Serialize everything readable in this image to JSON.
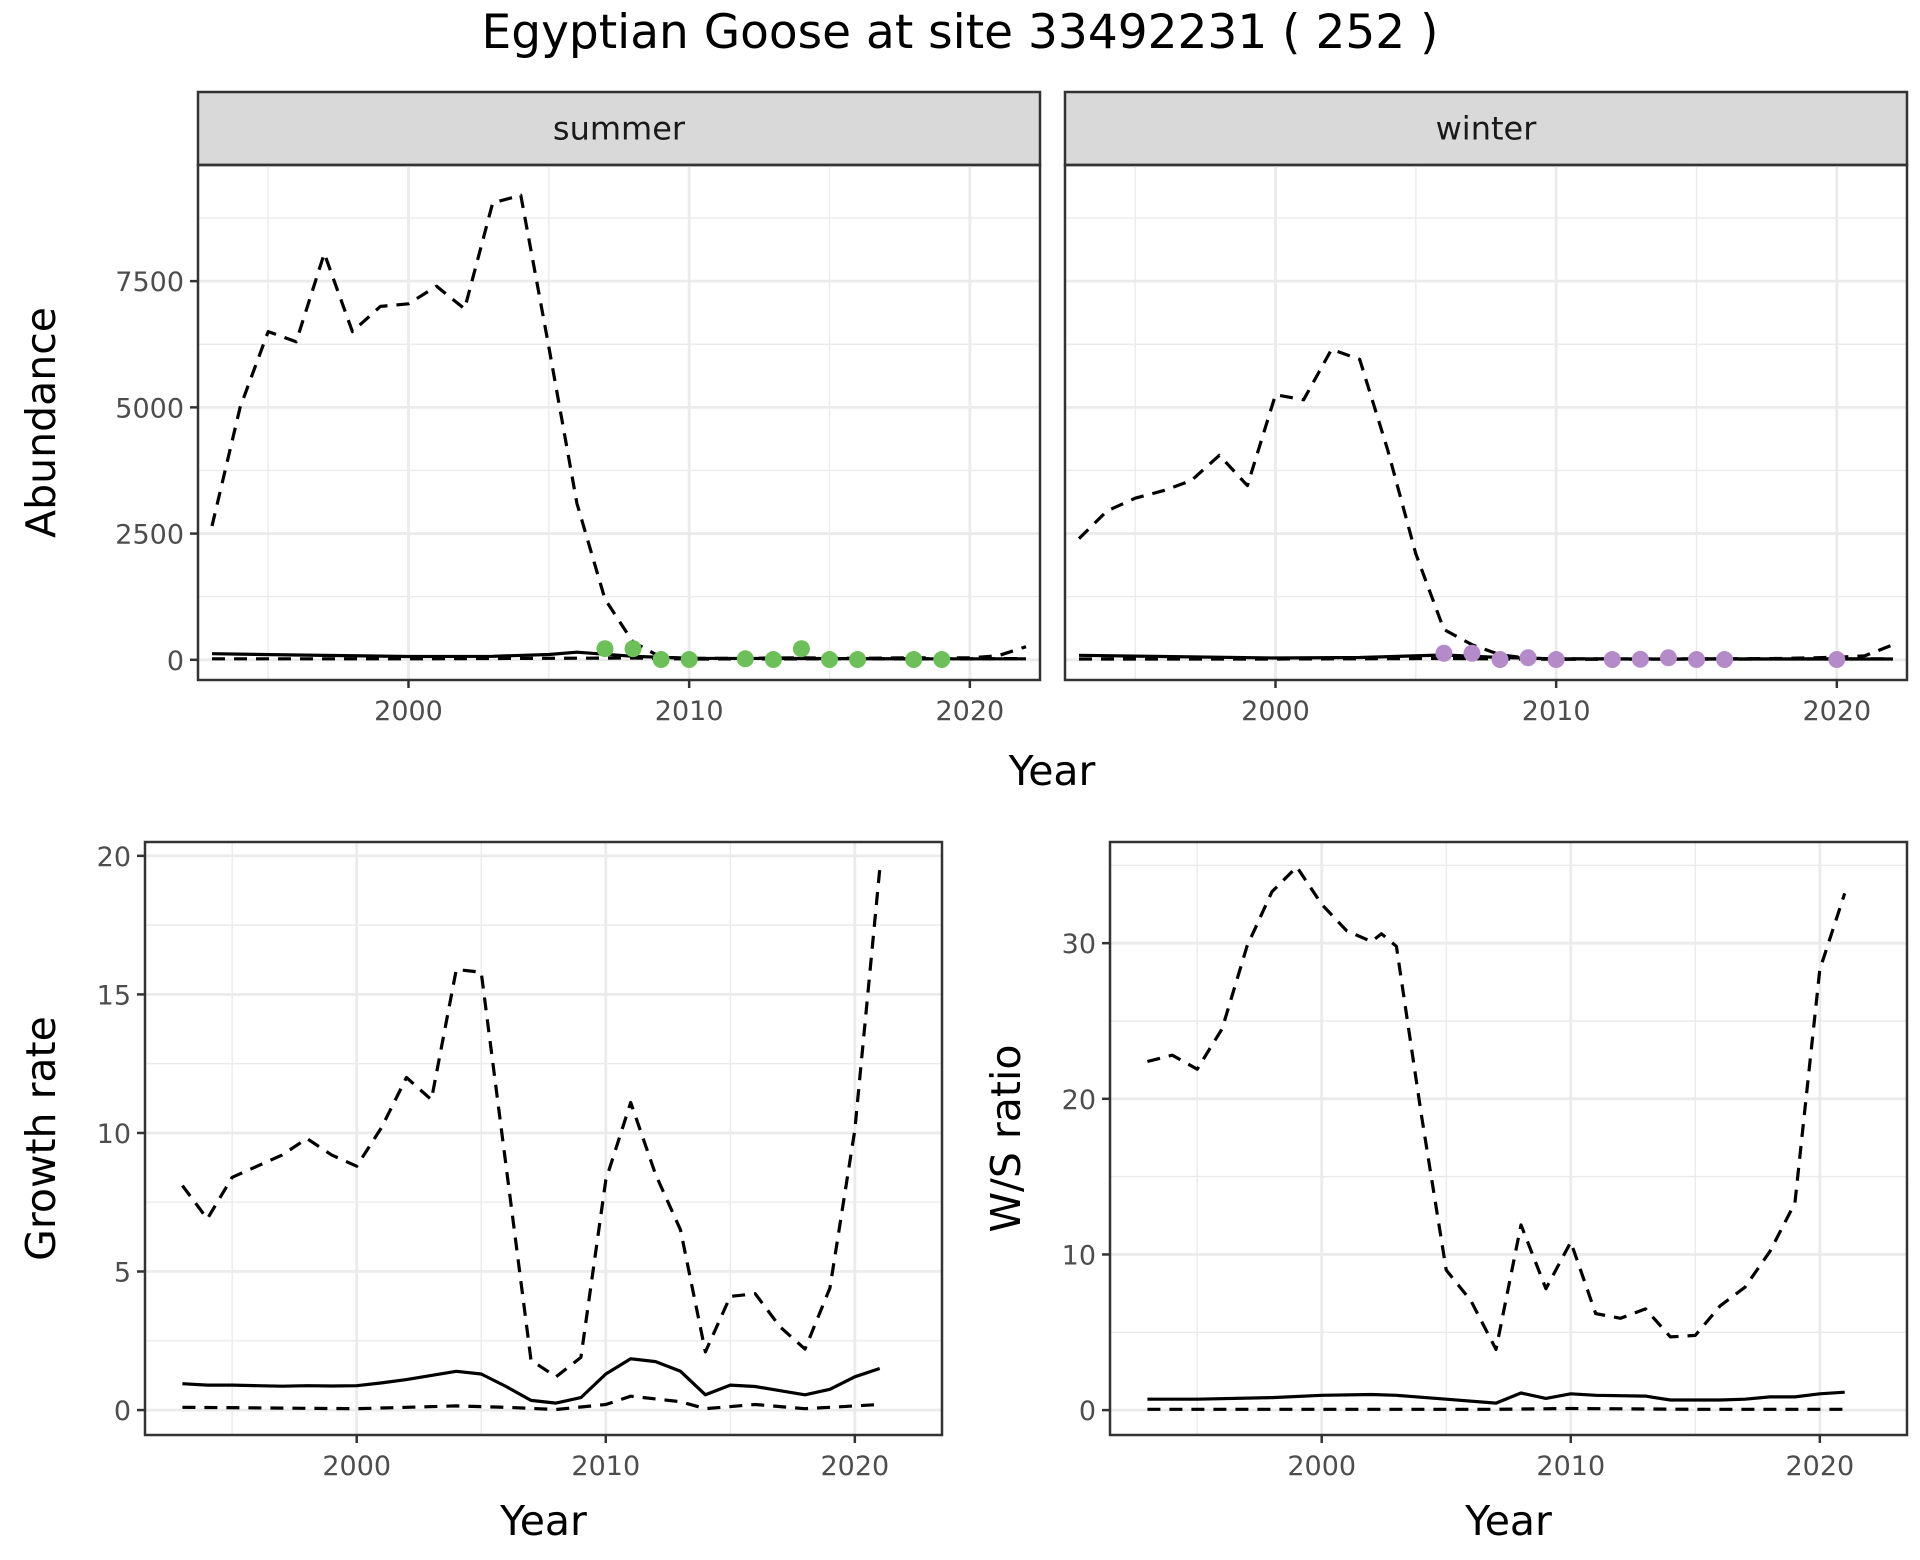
{
  "title": "Egyptian Goose at site 33492231 ( 252 )",
  "colors": {
    "summer_points": "#6dbf5a",
    "winter_points": "#b48ac8",
    "line": "#000000",
    "strip_fill": "#d9d9d9",
    "grid": "#ebebeb"
  },
  "chart_data": [
    {
      "type": "line",
      "panel": "summer",
      "strip_label": "summer",
      "xlabel": "Year",
      "ylabel": "Abundance",
      "x_ticks": [
        2000,
        2010,
        2020
      ],
      "y_ticks": [
        0,
        2500,
        5000,
        7500
      ],
      "xlim": [
        1992.5,
        2022.5
      ],
      "ylim": [
        -400,
        9800
      ],
      "grid": true,
      "series": [
        {
          "style": "solid",
          "points": [
            [
              1993,
              120
            ],
            [
              1996,
              95
            ],
            [
              2000,
              65
            ],
            [
              2003,
              70
            ],
            [
              2005,
              105
            ],
            [
              2006,
              150
            ],
            [
              2008,
              70
            ],
            [
              2010,
              30
            ],
            [
              2014,
              25
            ],
            [
              2018,
              20
            ],
            [
              2022,
              20
            ]
          ]
        },
        {
          "style": "dashed",
          "points": [
            [
              1993,
              20
            ],
            [
              2000,
              20
            ],
            [
              2005,
              30
            ],
            [
              2008,
              35
            ],
            [
              2010,
              15
            ],
            [
              2015,
              20
            ],
            [
              2020,
              20
            ],
            [
              2022,
              25
            ]
          ]
        },
        {
          "style": "dashed",
          "points": [
            [
              1993,
              2650
            ],
            [
              1994,
              5000
            ],
            [
              1995,
              6500
            ],
            [
              1996,
              6300
            ],
            [
              1997,
              8050
            ],
            [
              1998,
              6500
            ],
            [
              1999,
              7000
            ],
            [
              2000,
              7050
            ],
            [
              2001,
              7400
            ],
            [
              2002,
              6950
            ],
            [
              2003,
              9050
            ],
            [
              2004,
              9200
            ],
            [
              2005,
              6200
            ],
            [
              2006,
              3100
            ],
            [
              2007,
              1200
            ],
            [
              2008,
              350
            ],
            [
              2009,
              50
            ],
            [
              2010,
              30
            ],
            [
              2012,
              30
            ],
            [
              2014,
              40
            ],
            [
              2016,
              30
            ],
            [
              2018,
              40
            ],
            [
              2020,
              40
            ],
            [
              2021,
              80
            ],
            [
              2022,
              260
            ]
          ]
        }
      ],
      "points": [
        [
          2007,
          220
        ],
        [
          2008,
          220
        ],
        [
          2009,
          5
        ],
        [
          2010,
          5
        ],
        [
          2012,
          20
        ],
        [
          2013,
          5
        ],
        [
          2014,
          220
        ],
        [
          2015,
          5
        ],
        [
          2016,
          5
        ],
        [
          2018,
          5
        ],
        [
          2019,
          5
        ]
      ]
    },
    {
      "type": "line",
      "panel": "winter",
      "strip_label": "winter",
      "xlabel": "Year",
      "ylabel": "",
      "x_ticks": [
        2000,
        2010,
        2020
      ],
      "y_ticks": [
        0,
        2500,
        5000,
        7500
      ],
      "xlim": [
        1992.5,
        2022.5
      ],
      "ylim": [
        -400,
        9800
      ],
      "grid": true,
      "series": [
        {
          "style": "solid",
          "points": [
            [
              1993,
              90
            ],
            [
              1996,
              65
            ],
            [
              2000,
              35
            ],
            [
              2003,
              45
            ],
            [
              2006,
              95
            ],
            [
              2008,
              45
            ],
            [
              2010,
              20
            ],
            [
              2015,
              15
            ],
            [
              2020,
              15
            ],
            [
              2022,
              15
            ]
          ]
        },
        {
          "style": "dashed",
          "points": [
            [
              1993,
              15
            ],
            [
              2000,
              15
            ],
            [
              2006,
              25
            ],
            [
              2010,
              10
            ],
            [
              2016,
              15
            ],
            [
              2022,
              20
            ]
          ]
        },
        {
          "style": "dashed",
          "points": [
            [
              1993,
              2400
            ],
            [
              1994,
              2950
            ],
            [
              1995,
              3200
            ],
            [
              1996,
              3350
            ],
            [
              1997,
              3550
            ],
            [
              1998,
              4050
            ],
            [
              1999,
              3450
            ],
            [
              2000,
              5250
            ],
            [
              2001,
              5150
            ],
            [
              2002,
              6150
            ],
            [
              2003,
              5950
            ],
            [
              2004,
              4150
            ],
            [
              2005,
              2100
            ],
            [
              2006,
              600
            ],
            [
              2007,
              300
            ],
            [
              2008,
              100
            ],
            [
              2009,
              30
            ],
            [
              2010,
              20
            ],
            [
              2013,
              15
            ],
            [
              2016,
              20
            ],
            [
              2018,
              25
            ],
            [
              2020,
              50
            ],
            [
              2021,
              80
            ],
            [
              2022,
              300
            ]
          ]
        }
      ],
      "points": [
        [
          2006,
          130
        ],
        [
          2007,
          130
        ],
        [
          2008,
          5
        ],
        [
          2009,
          40
        ],
        [
          2010,
          5
        ],
        [
          2012,
          5
        ],
        [
          2013,
          10
        ],
        [
          2014,
          40
        ],
        [
          2015,
          5
        ],
        [
          2016,
          5
        ],
        [
          2020,
          5
        ]
      ]
    },
    {
      "type": "line",
      "panel": "growth",
      "strip_label": "",
      "xlabel": "Year",
      "ylabel": "Growth rate",
      "x_ticks": [
        2000,
        2010,
        2020
      ],
      "y_ticks": [
        0,
        5,
        10,
        15,
        20
      ],
      "xlim": [
        1991.5,
        2023.5
      ],
      "ylim": [
        -0.9,
        20.5
      ],
      "grid": true,
      "series": [
        {
          "style": "solid",
          "points": [
            [
              1993,
              0.95
            ],
            [
              1994,
              0.9
            ],
            [
              1995,
              0.9
            ],
            [
              1996,
              0.88
            ],
            [
              1997,
              0.86
            ],
            [
              1998,
              0.88
            ],
            [
              1999,
              0.87
            ],
            [
              2000,
              0.88
            ],
            [
              2001,
              0.98
            ],
            [
              2002,
              1.1
            ],
            [
              2003,
              1.25
            ],
            [
              2004,
              1.4
            ],
            [
              2005,
              1.3
            ],
            [
              2006,
              0.85
            ],
            [
              2007,
              0.35
            ],
            [
              2008,
              0.25
            ],
            [
              2009,
              0.45
            ],
            [
              2010,
              1.3
            ],
            [
              2011,
              1.85
            ],
            [
              2012,
              1.75
            ],
            [
              2013,
              1.4
            ],
            [
              2014,
              0.55
            ],
            [
              2015,
              0.9
            ],
            [
              2016,
              0.85
            ],
            [
              2017,
              0.7
            ],
            [
              2018,
              0.55
            ],
            [
              2019,
              0.75
            ],
            [
              2020,
              1.2
            ],
            [
              2021,
              1.5
            ]
          ]
        },
        {
          "style": "dashed",
          "points": [
            [
              1993,
              0.1
            ],
            [
              2000,
              0.05
            ],
            [
              2004,
              0.15
            ],
            [
              2006,
              0.1
            ],
            [
              2008,
              0.02
            ],
            [
              2010,
              0.2
            ],
            [
              2011,
              0.5
            ],
            [
              2013,
              0.3
            ],
            [
              2014,
              0.05
            ],
            [
              2016,
              0.2
            ],
            [
              2018,
              0.05
            ],
            [
              2021,
              0.2
            ]
          ]
        },
        {
          "style": "dashed",
          "points": [
            [
              1993,
              8.1
            ],
            [
              1994,
              6.9
            ],
            [
              1995,
              8.4
            ],
            [
              1996,
              8.8
            ],
            [
              1997,
              9.2
            ],
            [
              1998,
              9.8
            ],
            [
              1999,
              9.2
            ],
            [
              2000,
              8.8
            ],
            [
              2001,
              10.2
            ],
            [
              2002,
              12
            ],
            [
              2003,
              11.2
            ],
            [
              2004,
              15.9
            ],
            [
              2005,
              15.8
            ],
            [
              2006,
              8.8
            ],
            [
              2007,
              1.8
            ],
            [
              2008,
              1.2
            ],
            [
              2009,
              1.9
            ],
            [
              2010,
              8.3
            ],
            [
              2011,
              11.1
            ],
            [
              2012,
              8.5
            ],
            [
              2013,
              6.5
            ],
            [
              2014,
              2.1
            ],
            [
              2015,
              4.1
            ],
            [
              2016,
              4.2
            ],
            [
              2017,
              3
            ],
            [
              2018,
              2.2
            ],
            [
              2019,
              4.4
            ],
            [
              2020,
              10.1
            ],
            [
              2021,
              19.5
            ]
          ]
        }
      ]
    },
    {
      "type": "line",
      "panel": "ws_ratio",
      "strip_label": "",
      "xlabel": "Year",
      "ylabel": "W/S ratio",
      "x_ticks": [
        2000,
        2010,
        2020
      ],
      "y_ticks": [
        0,
        10,
        20,
        30
      ],
      "xlim": [
        1991.5,
        2023.5
      ],
      "ylim": [
        -1.6,
        36.5
      ],
      "grid": true,
      "series": [
        {
          "style": "solid",
          "points": [
            [
              1993,
              0.7
            ],
            [
              1995,
              0.7
            ],
            [
              1998,
              0.8
            ],
            [
              2000,
              0.95
            ],
            [
              2002,
              1.0
            ],
            [
              2003,
              0.95
            ],
            [
              2005,
              0.7
            ],
            [
              2007,
              0.45
            ],
            [
              2008,
              1.1
            ],
            [
              2009,
              0.75
            ],
            [
              2010,
              1.05
            ],
            [
              2011,
              0.95
            ],
            [
              2013,
              0.9
            ],
            [
              2014,
              0.65
            ],
            [
              2016,
              0.65
            ],
            [
              2017,
              0.7
            ],
            [
              2018,
              0.85
            ],
            [
              2019,
              0.85
            ],
            [
              2020,
              1.05
            ],
            [
              2021,
              1.15
            ]
          ]
        },
        {
          "style": "dashed",
          "points": [
            [
              1993,
              0.05
            ],
            [
              2000,
              0.05
            ],
            [
              2007,
              0.05
            ],
            [
              2010,
              0.1
            ],
            [
              2015,
              0.05
            ],
            [
              2021,
              0.05
            ]
          ]
        },
        {
          "style": "dashed",
          "points": [
            [
              1993,
              22.4
            ],
            [
              1994,
              22.8
            ],
            [
              1995,
              21.9
            ],
            [
              1996,
              24.5
            ],
            [
              1997,
              29.8
            ],
            [
              1998,
              33.3
            ],
            [
              1999,
              34.9
            ],
            [
              2000,
              32.5
            ],
            [
              2001,
              30.8
            ],
            [
              2002,
              30.1
            ],
            [
              2002.4,
              30.6
            ],
            [
              2003,
              29.8
            ],
            [
              2004,
              19
            ],
            [
              2005,
              9
            ],
            [
              2006,
              7
            ],
            [
              2007,
              3.9
            ],
            [
              2008,
              11.9
            ],
            [
              2009,
              7.8
            ],
            [
              2010,
              10.8
            ],
            [
              2011,
              6.2
            ],
            [
              2012,
              5.9
            ],
            [
              2013,
              6.5
            ],
            [
              2014,
              4.7
            ],
            [
              2015,
              4.8
            ],
            [
              2016,
              6.7
            ],
            [
              2017,
              7.9
            ],
            [
              2018,
              10.2
            ],
            [
              2019,
              13.3
            ],
            [
              2020,
              28.3
            ],
            [
              2021,
              33.2
            ]
          ]
        }
      ]
    }
  ]
}
